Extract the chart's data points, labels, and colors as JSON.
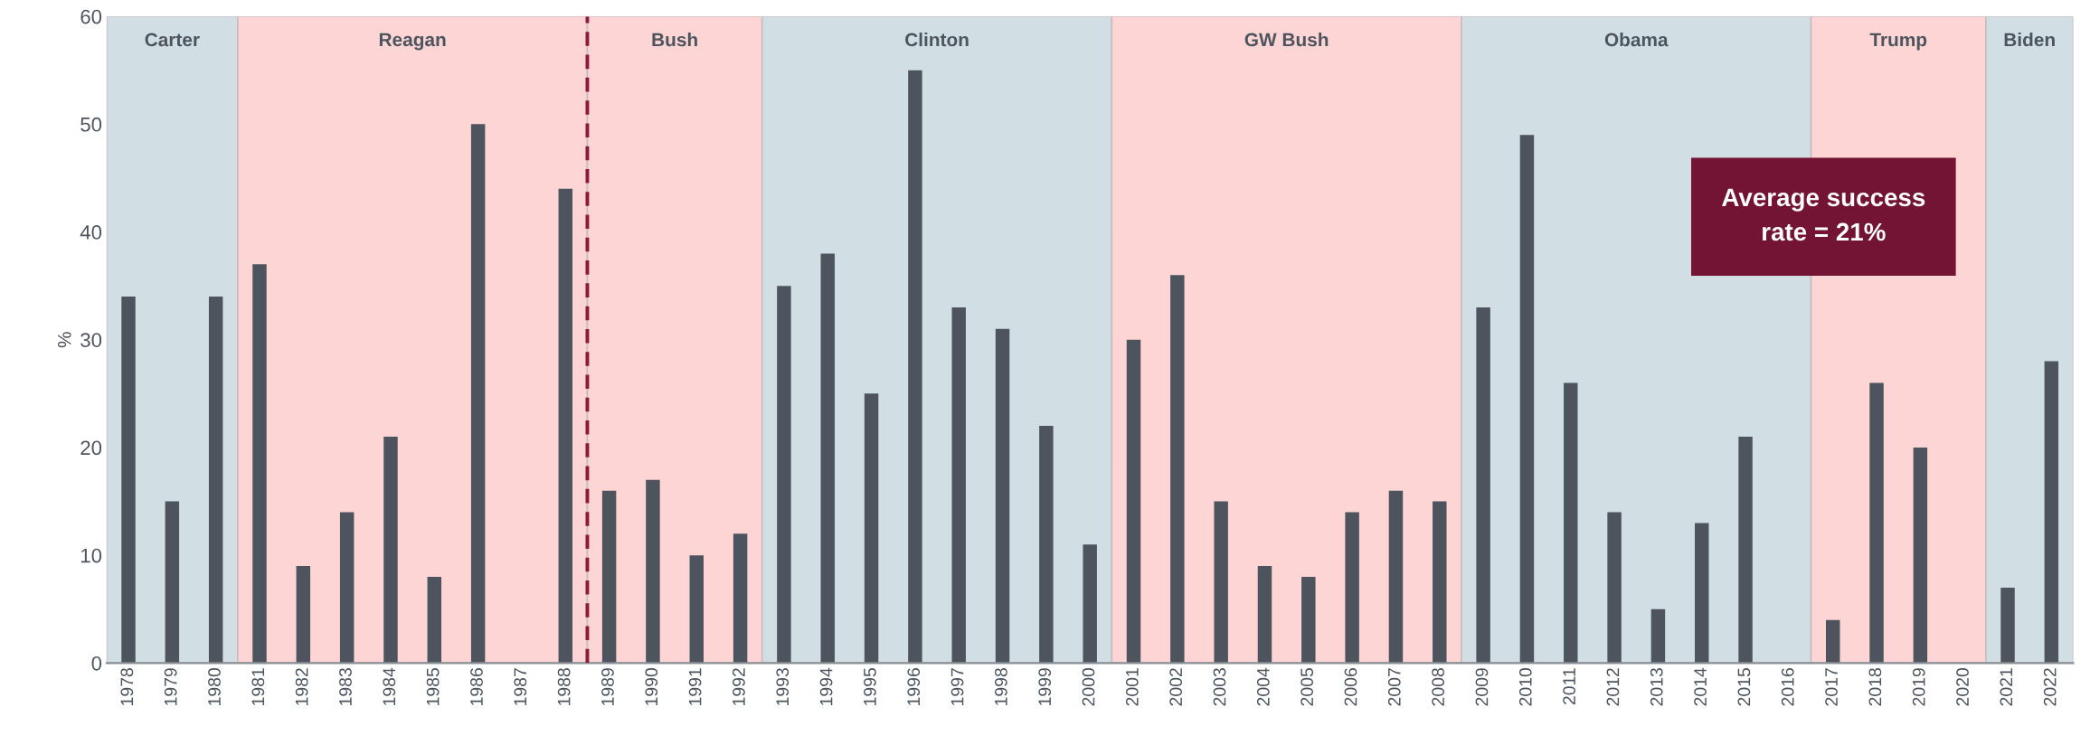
{
  "chart_data": {
    "type": "bar",
    "ylabel": "%",
    "categories": [
      "1978",
      "1979",
      "1980",
      "1981",
      "1982",
      "1983",
      "1984",
      "1985",
      "1986",
      "1987",
      "1988",
      "1989",
      "1990",
      "1991",
      "1992",
      "1993",
      "1994",
      "1995",
      "1996",
      "1997",
      "1998",
      "1999",
      "2000",
      "2001",
      "2002",
      "2003",
      "2004",
      "2005",
      "2006",
      "2007",
      "2008",
      "2009",
      "2010",
      "2011",
      "2012",
      "2013",
      "2014",
      "2015",
      "2016",
      "2017",
      "2018",
      "2019",
      "2020",
      "2021",
      "2022"
    ],
    "values": [
      34,
      15,
      34,
      37,
      9,
      14,
      21,
      8,
      50,
      0,
      44,
      16,
      17,
      10,
      12,
      35,
      38,
      25,
      55,
      33,
      31,
      22,
      11,
      30,
      36,
      15,
      9,
      8,
      14,
      16,
      15,
      33,
      49,
      26,
      14,
      5,
      13,
      21,
      0,
      4,
      26,
      20,
      0,
      7,
      28
    ],
    "color": "#4d545e",
    "ylim": [
      0,
      60
    ],
    "yticks": [
      0,
      10,
      20,
      30,
      40,
      50,
      60
    ],
    "grid": false,
    "legend": false,
    "bands": [
      {
        "axis": "x",
        "from": "1978",
        "to": "1980",
        "label": "Carter",
        "color": "#d1dfe5"
      },
      {
        "axis": "x",
        "from": "1981",
        "to": "1988",
        "label": "Reagan",
        "color": "#fed5d5"
      },
      {
        "axis": "x",
        "from": "1989",
        "to": "1992",
        "label": "Bush",
        "color": "#fed5d5"
      },
      {
        "axis": "x",
        "from": "1993",
        "to": "2000",
        "label": "Clinton",
        "color": "#d1dfe5"
      },
      {
        "axis": "x",
        "from": "2001",
        "to": "2008",
        "label": "GW Bush",
        "color": "#fed5d5"
      },
      {
        "axis": "x",
        "from": "2009",
        "to": "2016",
        "label": "Obama",
        "color": "#d1dfe5"
      },
      {
        "axis": "x",
        "from": "2017",
        "to": "2020",
        "label": "Trump",
        "color": "#fed5d5"
      },
      {
        "axis": "x",
        "from": "2021",
        "to": "2022",
        "label": "Biden",
        "color": "#d1dfe5"
      }
    ],
    "ref_lines": [
      {
        "axis": "x",
        "value": "1988",
        "label": null,
        "color": "#8b1a3c",
        "line_style": "dashed"
      }
    ],
    "annotations": [
      "Average success rate = 21%"
    ]
  }
}
